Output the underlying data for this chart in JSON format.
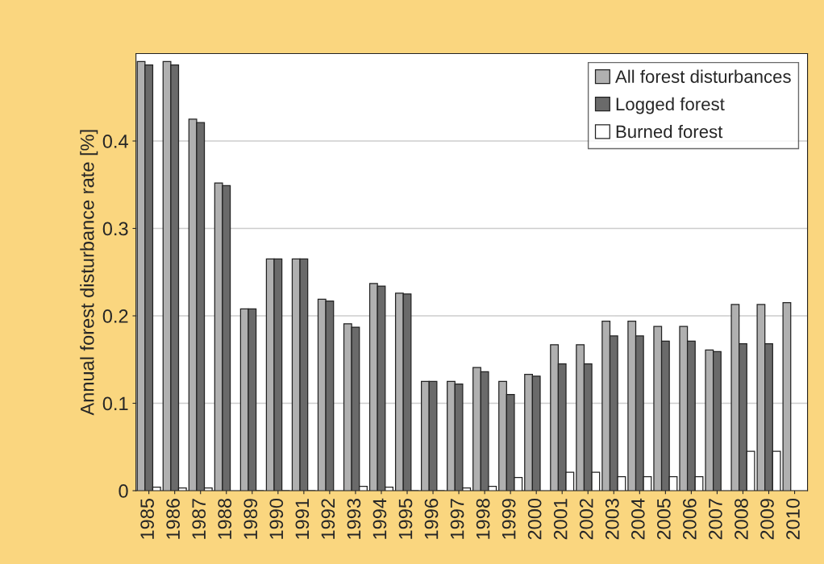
{
  "chart_data": {
    "type": "bar",
    "ylabel": "Annual forest disturbance rate [%]",
    "categories": [
      "1985",
      "1986",
      "1987",
      "1988",
      "1989",
      "1990",
      "1991",
      "1992",
      "1993",
      "1994",
      "1995",
      "1996",
      "1997",
      "1998",
      "1999",
      "2000",
      "2001",
      "2002",
      "2003",
      "2004",
      "2005",
      "2006",
      "2007",
      "2008",
      "2009",
      "2010"
    ],
    "series": [
      {
        "name": "All forest disturbances",
        "color": "#b0b0b0",
        "values": [
          0.491,
          0.491,
          0.425,
          0.352,
          0.208,
          0.265,
          0.265,
          0.219,
          0.191,
          0.237,
          0.226,
          0.125,
          0.125,
          0.141,
          0.125,
          0.133,
          0.167,
          0.167,
          0.194,
          0.194,
          0.188,
          0.188,
          0.161,
          0.213,
          0.213,
          0.215
        ]
      },
      {
        "name": "Logged forest",
        "color": "#6a6a6a",
        "values": [
          0.487,
          0.487,
          0.421,
          0.349,
          0.208,
          0.265,
          0.265,
          0.217,
          0.187,
          0.234,
          0.225,
          0.125,
          0.122,
          0.136,
          0.11,
          0.131,
          0.145,
          0.145,
          0.177,
          0.177,
          0.171,
          0.171,
          0.159,
          0.168,
          0.168,
          null
        ]
      },
      {
        "name": "Burned forest",
        "color": "#ffffff",
        "values": [
          0.004,
          0.003,
          0.003,
          null,
          0,
          0,
          0,
          null,
          0.005,
          0.004,
          0,
          0,
          0.003,
          0.005,
          0.015,
          null,
          0.021,
          0.021,
          0.016,
          0.016,
          0.016,
          0.016,
          null,
          0.045,
          0.045,
          null
        ]
      }
    ],
    "ylim": [
      0,
      0.5
    ],
    "yticks": [
      0,
      0.1,
      0.2,
      0.3,
      0.4
    ],
    "grid": "y",
    "legend": "top right"
  }
}
